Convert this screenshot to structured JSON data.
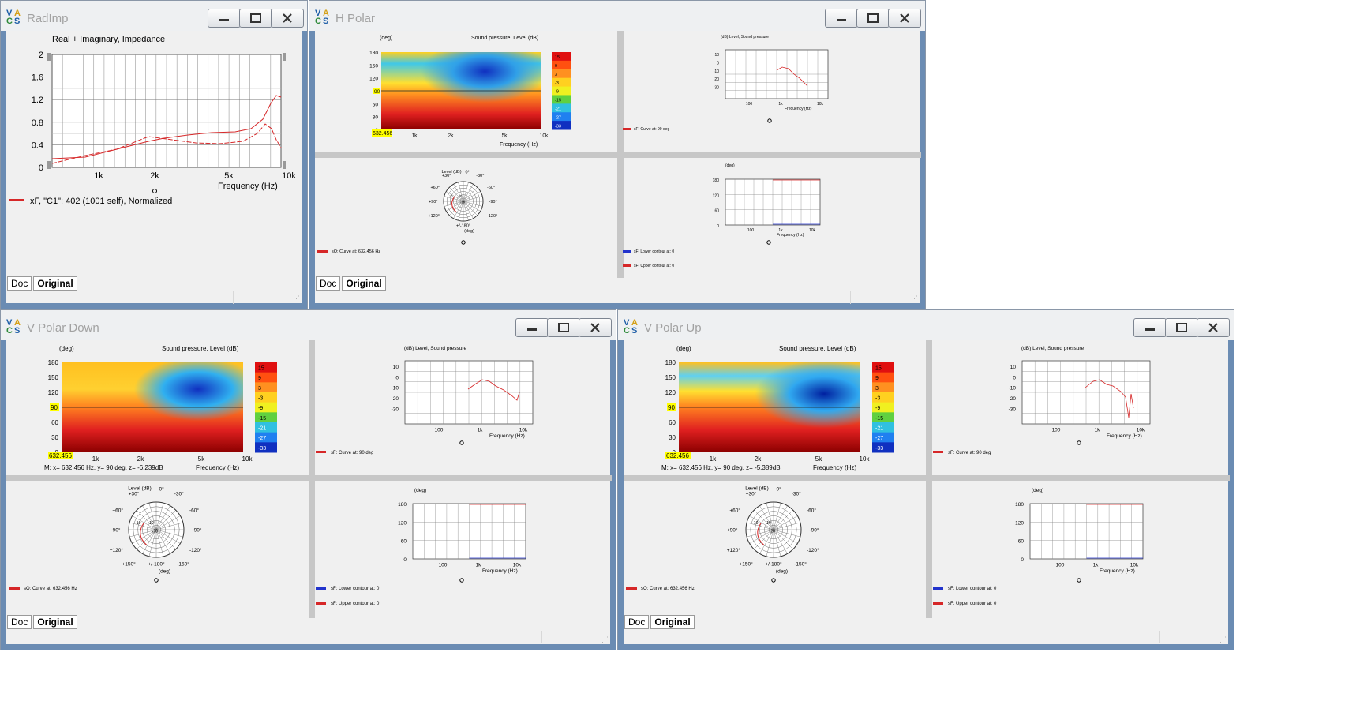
{
  "windows": {
    "radimp": {
      "title": "RadImp"
    },
    "hpolar": {
      "title": "H Polar"
    },
    "vdown": {
      "title": "V Polar Down"
    },
    "vup": {
      "title": "V Polar Up"
    }
  },
  "icons": {
    "logo": "vacs-logo-icon",
    "minimize": "minimize-icon",
    "maximize": "maximize-icon",
    "close": "close-icon",
    "grip": "resize-grip-icon"
  },
  "logo": {
    "v": "V",
    "a": "A",
    "c": "C",
    "s": "S"
  },
  "tabs": {
    "doc": "Doc",
    "original": "Original"
  },
  "colors": {
    "curve": "#d62728",
    "lower_contour": "#2233cc",
    "upper_contour": "#d62728",
    "accent_marker": "#ffff00"
  },
  "radimp": {
    "title": "Real + Imaginary, Impedance",
    "xlabel": "Frequency  (Hz)",
    "legend": "xF, \"C1\": 402 (1001 self), Normalized",
    "yticks": [
      "2",
      "1.6",
      "1.2",
      "0.8",
      "0.4",
      "0"
    ],
    "xticks": [
      "1k",
      "2k",
      "5k",
      "10k"
    ]
  },
  "contour": {
    "title": "Sound pressure, Level  (dB)",
    "yunit": "(deg)",
    "xlabel": "Frequency  (Hz)",
    "yticks": [
      "180",
      "150",
      "120",
      "90",
      "60",
      "30",
      "0"
    ],
    "xticks": [
      "1k",
      "2k",
      "5k",
      "10k"
    ],
    "colorbar": [
      "15",
      "9",
      "3",
      "-3",
      "-9",
      "-15",
      "-21",
      "-27",
      "-33"
    ],
    "cursor_y": "90",
    "cursor_x": "632.456"
  },
  "hpolar": {
    "contour_title": "Sound pressure, Level  (dB)",
    "contour_xlabel": "Frequency  (Hz)"
  },
  "vdown": {
    "marker": "M:  x= 632.456 Hz,  y= 90 deg,  z= -6.239dB"
  },
  "vup": {
    "marker": "M:  x= 632.456 Hz,  y= 90 deg,  z= -5.389dB"
  },
  "freq": {
    "title": "(dB)  Level, Sound pressure",
    "yticks": [
      "10",
      "0",
      "-10",
      "-20",
      "-30"
    ],
    "xticks": [
      "100",
      "1k",
      "10k"
    ],
    "xlabel": "Frequency  (Hz)",
    "legend": "sF: Curve at: 90 deg"
  },
  "polar": {
    "title": "Level  (dB)",
    "labels": {
      "p0": "0°",
      "p30": "+30°",
      "m30": "-30°",
      "p60": "+60°",
      "m60": "-60°",
      "p90": "+90°",
      "m90": "-90°",
      "p120": "+120°",
      "m120": "-120°",
      "p150": "+150°",
      "m150": "-150°",
      "p180": "+/-180°"
    },
    "rings": {
      "r10": "10",
      "r0": "0",
      "m10": "-10",
      "m20": "-20"
    },
    "unit": "(deg)",
    "legend": "sO: Curve at: 632.456 Hz"
  },
  "contourlines": {
    "title": "(deg)",
    "yticks": [
      "180",
      "120",
      "60",
      "0"
    ],
    "xticks": [
      "100",
      "1k",
      "10k"
    ],
    "xlabel": "Frequency  (Hz)",
    "legend_lower": "sF: Lower contour at: 0",
    "legend_upper": "sF: Upper contour at: 0"
  }
}
